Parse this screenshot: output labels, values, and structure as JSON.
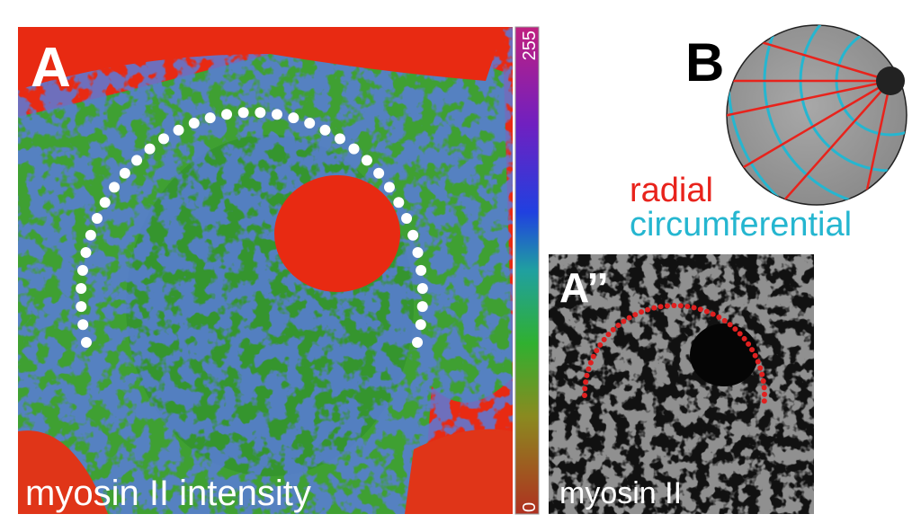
{
  "panel_a": {
    "label": "A",
    "caption": "myosin II intensity"
  },
  "colorbar": {
    "max": 255,
    "min": 0
  },
  "panel_b": {
    "label": "B",
    "legend": {
      "radial": "radial",
      "circumferential": "circumferential"
    }
  },
  "panel_a2": {
    "label": "A’’",
    "caption": "myosin II"
  }
}
